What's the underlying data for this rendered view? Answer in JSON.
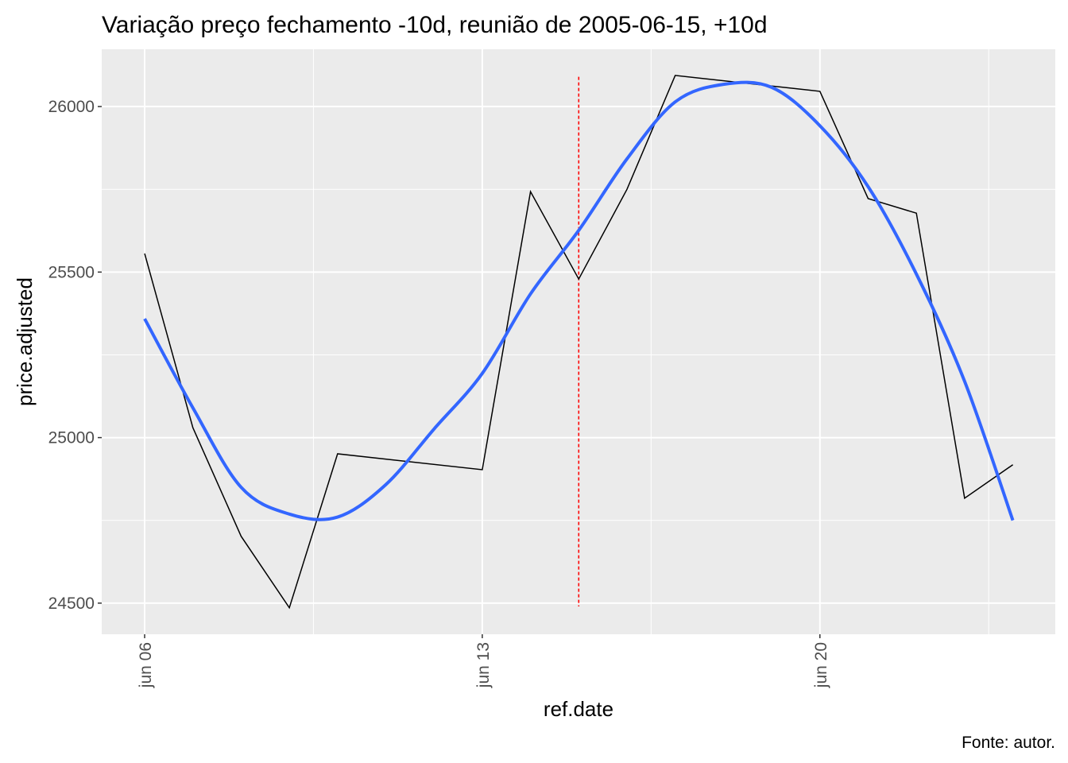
{
  "chart_data": {
    "type": "line",
    "title": "Variação preço fechamento -10d, reunião de 2005-06-15, +10d",
    "xlabel": "ref.date",
    "ylabel": "price.adjusted",
    "caption": "Fonte: autor.",
    "x_unit": "days since 2005-06-06",
    "xlim": [
      -0.89,
      18.88
    ],
    "ylim": [
      24406,
      26173
    ],
    "x_ticks": [
      {
        "value": 0,
        "label": "jun 06"
      },
      {
        "value": 7,
        "label": "jun 13"
      },
      {
        "value": 14,
        "label": "jun 20"
      }
    ],
    "x_minor": [
      3.5,
      10.5,
      17.5
    ],
    "y_ticks": [
      {
        "value": 24500,
        "label": "24500"
      },
      {
        "value": 25000,
        "label": "25000"
      },
      {
        "value": 25500,
        "label": "25500"
      },
      {
        "value": 26000,
        "label": "26000"
      }
    ],
    "y_minor": [
      24750,
      25250,
      25750
    ],
    "grid": true,
    "series": [
      {
        "name": "price.adjusted",
        "color": "#000000",
        "x": [
          0,
          1,
          2,
          3,
          4,
          7,
          8,
          9,
          10,
          11,
          14,
          15,
          16,
          17,
          18
        ],
        "y": [
          25556,
          25030,
          24702,
          24486,
          24951,
          24903,
          25743,
          25479,
          25750,
          26094,
          26046,
          25722,
          25678,
          24817,
          24918
        ]
      },
      {
        "name": "smooth",
        "color": "#3366FF",
        "x": [
          0,
          1,
          2,
          3,
          4,
          5,
          6,
          7,
          8,
          9,
          10,
          11,
          12,
          13,
          14,
          15,
          16,
          17,
          18
        ],
        "y": [
          25359,
          25090,
          24850,
          24769,
          24760,
          24858,
          25026,
          25194,
          25434,
          25626,
          25842,
          26014,
          26067,
          26058,
          25942,
          25758,
          25494,
          25170,
          24750
        ]
      }
    ],
    "vline": {
      "x": 9,
      "label_date": "2005-06-15",
      "y_from": 24490,
      "y_to": 26090,
      "color": "#FF0000"
    }
  }
}
